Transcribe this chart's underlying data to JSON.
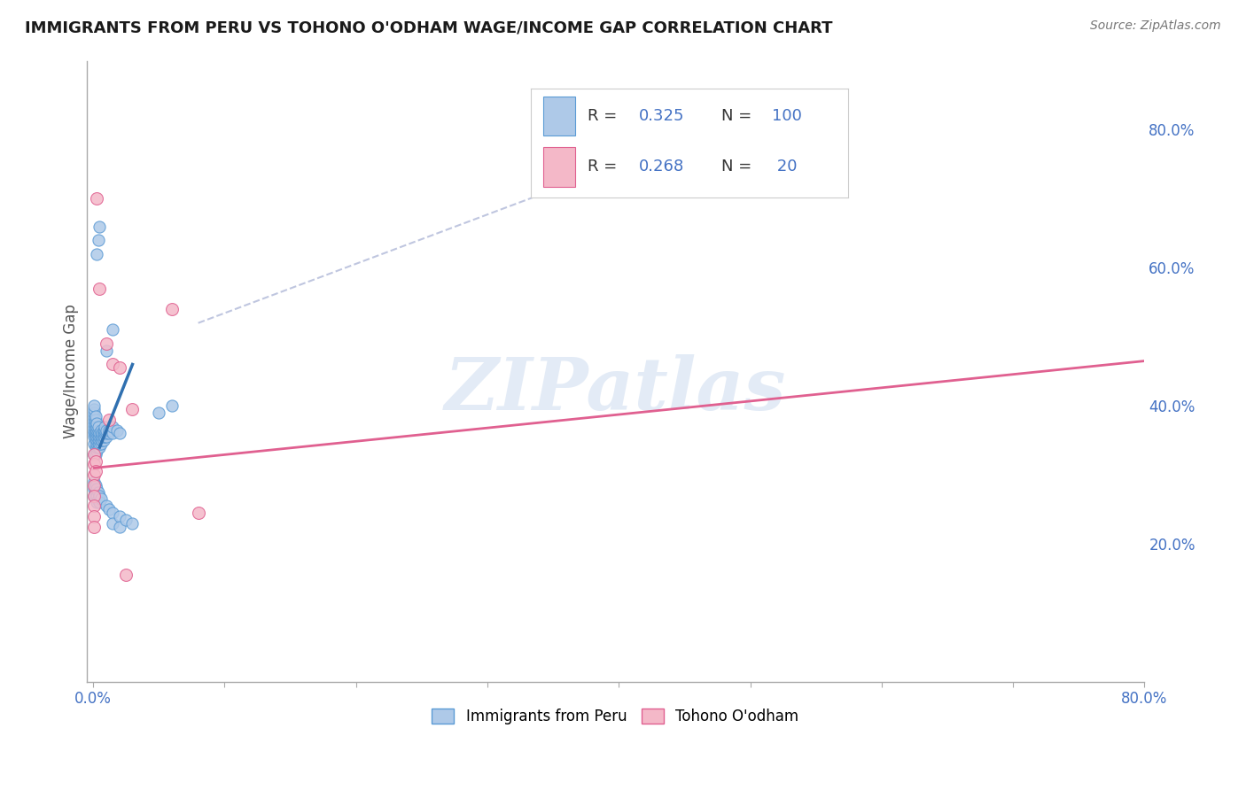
{
  "title": "IMMIGRANTS FROM PERU VS TOHONO O'ODHAM WAGE/INCOME GAP CORRELATION CHART",
  "source": "Source: ZipAtlas.com",
  "ylabel": "Wage/Income Gap",
  "xlim": [
    0.0,
    0.8
  ],
  "ylim": [
    0.0,
    0.9
  ],
  "ytick_positions": [
    0.2,
    0.4,
    0.6,
    0.8
  ],
  "ytick_labels": [
    "20.0%",
    "40.0%",
    "60.0%",
    "80.0%"
  ],
  "watermark": "ZIPatlas",
  "blue_color": "#aec9e8",
  "blue_edge_color": "#5b9bd5",
  "pink_color": "#f4b8c8",
  "pink_edge_color": "#e06090",
  "blue_line_color": "#3070b0",
  "pink_line_color": "#e06090",
  "diag_color": "#b0b8d8",
  "blue_scatter": [
    [
      0.001,
      0.33
    ],
    [
      0.001,
      0.345
    ],
    [
      0.001,
      0.355
    ],
    [
      0.001,
      0.36
    ],
    [
      0.001,
      0.365
    ],
    [
      0.001,
      0.37
    ],
    [
      0.001,
      0.375
    ],
    [
      0.001,
      0.38
    ],
    [
      0.001,
      0.385
    ],
    [
      0.001,
      0.39
    ],
    [
      0.001,
      0.395
    ],
    [
      0.001,
      0.4
    ],
    [
      0.002,
      0.33
    ],
    [
      0.002,
      0.34
    ],
    [
      0.002,
      0.35
    ],
    [
      0.002,
      0.355
    ],
    [
      0.002,
      0.36
    ],
    [
      0.002,
      0.365
    ],
    [
      0.002,
      0.37
    ],
    [
      0.002,
      0.375
    ],
    [
      0.002,
      0.38
    ],
    [
      0.002,
      0.385
    ],
    [
      0.003,
      0.335
    ],
    [
      0.003,
      0.34
    ],
    [
      0.003,
      0.345
    ],
    [
      0.003,
      0.35
    ],
    [
      0.003,
      0.355
    ],
    [
      0.003,
      0.36
    ],
    [
      0.003,
      0.365
    ],
    [
      0.003,
      0.37
    ],
    [
      0.003,
      0.375
    ],
    [
      0.004,
      0.34
    ],
    [
      0.004,
      0.345
    ],
    [
      0.004,
      0.35
    ],
    [
      0.004,
      0.355
    ],
    [
      0.004,
      0.36
    ],
    [
      0.004,
      0.365
    ],
    [
      0.004,
      0.37
    ],
    [
      0.005,
      0.34
    ],
    [
      0.005,
      0.345
    ],
    [
      0.005,
      0.35
    ],
    [
      0.005,
      0.355
    ],
    [
      0.005,
      0.36
    ],
    [
      0.006,
      0.345
    ],
    [
      0.006,
      0.35
    ],
    [
      0.006,
      0.355
    ],
    [
      0.006,
      0.36
    ],
    [
      0.006,
      0.365
    ],
    [
      0.007,
      0.35
    ],
    [
      0.007,
      0.355
    ],
    [
      0.007,
      0.36
    ],
    [
      0.008,
      0.35
    ],
    [
      0.008,
      0.355
    ],
    [
      0.008,
      0.36
    ],
    [
      0.008,
      0.365
    ],
    [
      0.009,
      0.355
    ],
    [
      0.009,
      0.36
    ],
    [
      0.009,
      0.365
    ],
    [
      0.009,
      0.37
    ],
    [
      0.01,
      0.355
    ],
    [
      0.01,
      0.36
    ],
    [
      0.01,
      0.365
    ],
    [
      0.012,
      0.36
    ],
    [
      0.012,
      0.365
    ],
    [
      0.014,
      0.365
    ],
    [
      0.015,
      0.36
    ],
    [
      0.015,
      0.37
    ],
    [
      0.018,
      0.365
    ],
    [
      0.02,
      0.36
    ],
    [
      0.001,
      0.29
    ],
    [
      0.001,
      0.28
    ],
    [
      0.001,
      0.27
    ],
    [
      0.002,
      0.285
    ],
    [
      0.002,
      0.275
    ],
    [
      0.002,
      0.265
    ],
    [
      0.003,
      0.28
    ],
    [
      0.003,
      0.27
    ],
    [
      0.003,
      0.26
    ],
    [
      0.004,
      0.275
    ],
    [
      0.004,
      0.265
    ],
    [
      0.005,
      0.27
    ],
    [
      0.005,
      0.26
    ],
    [
      0.006,
      0.265
    ],
    [
      0.01,
      0.255
    ],
    [
      0.012,
      0.25
    ],
    [
      0.015,
      0.245
    ],
    [
      0.015,
      0.23
    ],
    [
      0.02,
      0.24
    ],
    [
      0.02,
      0.225
    ],
    [
      0.025,
      0.235
    ],
    [
      0.03,
      0.23
    ],
    [
      0.01,
      0.48
    ],
    [
      0.015,
      0.51
    ],
    [
      0.003,
      0.62
    ],
    [
      0.004,
      0.64
    ],
    [
      0.005,
      0.66
    ],
    [
      0.05,
      0.39
    ],
    [
      0.06,
      0.4
    ]
  ],
  "pink_scatter": [
    [
      0.001,
      0.33
    ],
    [
      0.001,
      0.315
    ],
    [
      0.001,
      0.3
    ],
    [
      0.001,
      0.285
    ],
    [
      0.001,
      0.27
    ],
    [
      0.001,
      0.255
    ],
    [
      0.001,
      0.24
    ],
    [
      0.001,
      0.225
    ],
    [
      0.002,
      0.32
    ],
    [
      0.002,
      0.305
    ],
    [
      0.003,
      0.7
    ],
    [
      0.005,
      0.57
    ],
    [
      0.01,
      0.49
    ],
    [
      0.015,
      0.46
    ],
    [
      0.02,
      0.455
    ],
    [
      0.03,
      0.395
    ],
    [
      0.06,
      0.54
    ],
    [
      0.08,
      0.245
    ],
    [
      0.025,
      0.155
    ],
    [
      0.012,
      0.38
    ]
  ],
  "blue_line_pts": [
    [
      0.005,
      0.34
    ],
    [
      0.03,
      0.46
    ]
  ],
  "pink_line_pts": [
    [
      0.001,
      0.31
    ],
    [
      0.8,
      0.465
    ]
  ],
  "diag_line_pts": [
    [
      0.08,
      0.52
    ],
    [
      0.5,
      0.82
    ]
  ],
  "background_color": "#ffffff",
  "grid_color": "#d5d5d5"
}
